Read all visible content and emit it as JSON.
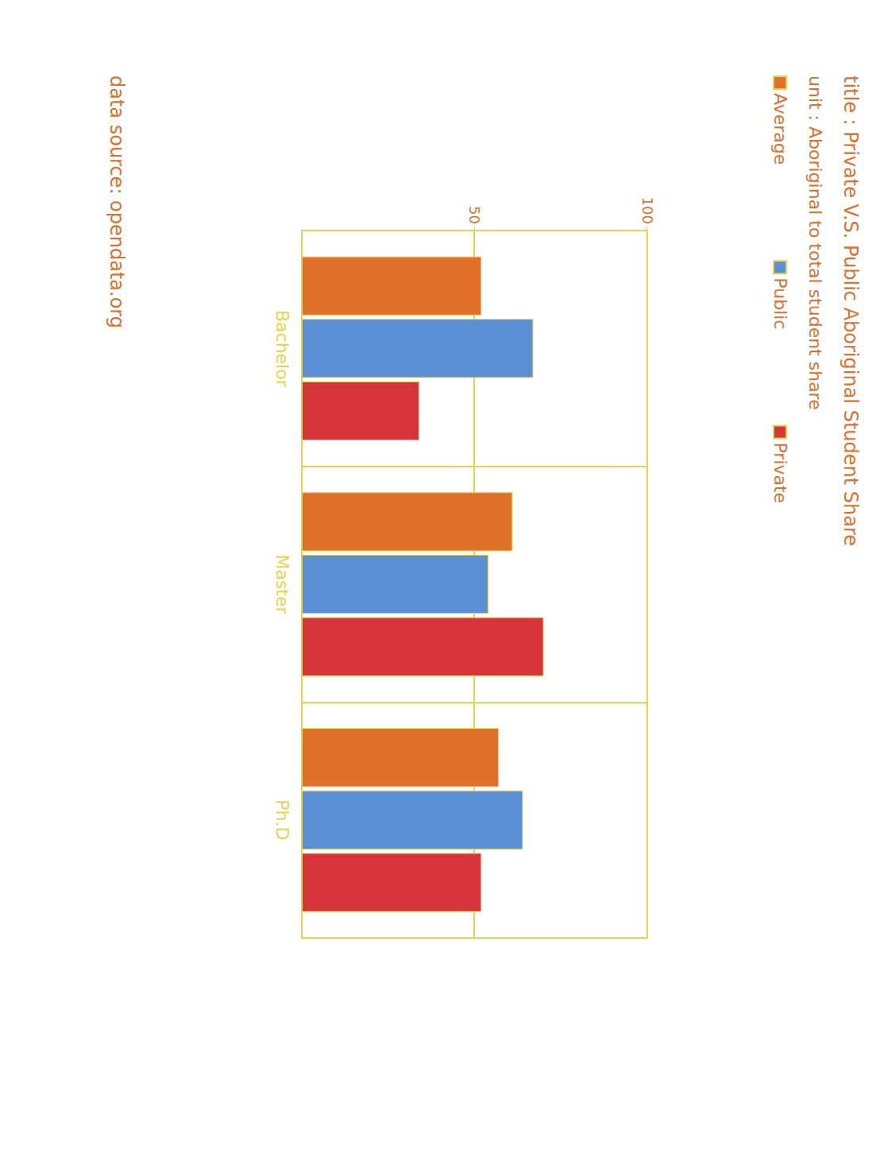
{
  "chart_data": {
    "type": "bar",
    "title": "title : Private V.S. Public Aboriginal Student Share",
    "subtitle": "unit : Aboriginal to total student share",
    "annotations": [
      "data source: opendata.org"
    ],
    "categories": [
      "Bachelor",
      "Master",
      "Ph.D"
    ],
    "series": [
      {
        "name": "Average",
        "color": "#e0702a",
        "values": [
          52,
          61,
          57
        ]
      },
      {
        "name": "Public",
        "color": "#5b8fd6",
        "values": [
          67,
          54,
          64
        ]
      },
      {
        "name": "Private",
        "color": "#d6343a",
        "values": [
          34,
          70,
          52
        ]
      }
    ],
    "ylim": [
      0,
      100
    ],
    "yticks": [
      50,
      100
    ],
    "grid": true,
    "legend": "top-left"
  }
}
